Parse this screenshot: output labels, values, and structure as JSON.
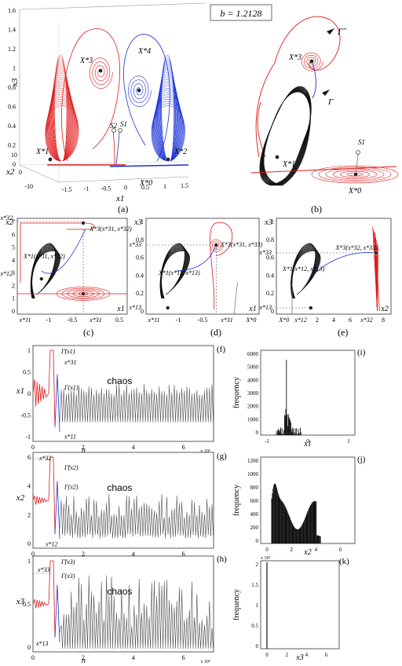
{
  "param_label": "b = 1.2128",
  "panels": {
    "a": "(a)",
    "b": "(b)",
    "c": "(c)",
    "d": "(d)",
    "e": "(e)",
    "f": "(f)",
    "g": "(g)",
    "h": "(h)",
    "i": "(i)",
    "j": "(j)",
    "k": "(k)"
  },
  "axes3d": {
    "x3": "x3",
    "x2": "x2",
    "x1": "x1",
    "z_ticks": [
      "1.6",
      "1.4",
      "1.2",
      "1",
      "0.8",
      "0.6",
      "0.4",
      "0.2",
      "0"
    ],
    "y_ticks": [
      "10",
      "0",
      "-10"
    ],
    "x_ticks": [
      "-1.5",
      "-1",
      "-0.5",
      "0",
      "0.5",
      "1",
      "1.5"
    ]
  },
  "points": {
    "X1": "X*1",
    "X2": "X*2",
    "X3": "X*3",
    "X4": "X*4",
    "X0": "X*0",
    "S1": "S1",
    "S2": "S2",
    "gamma_tilde": "Γ̃",
    "gamma": "Γ",
    "X3c": "X*3(x*31, x*32)",
    "X1c": "X*1(x*11, x*12)",
    "X3d": "X*3(x*31, x*33)",
    "X1d": "X*1(x*11, x*13)",
    "X3e": "X*3(x*32, x*33)",
    "X1e": "X*1(x*12, x*13)"
  },
  "panel_c": {
    "xlabel": "x1",
    "ylabel": "x2",
    "yticks": [
      "7",
      "6",
      "5",
      "4",
      "3",
      "2",
      "1",
      "0"
    ],
    "xticks": [
      "x*11",
      "-1",
      "-0.5",
      "x*31",
      "0.5"
    ],
    "ymarks": [
      "x*32",
      "x*12"
    ]
  },
  "panel_d": {
    "xlabel": "x1",
    "ylabel": "x3",
    "yticks": [
      "1",
      "0.8",
      "0.6",
      "0.4",
      "0.2",
      "0"
    ],
    "xticks": [
      "x*11",
      "-1",
      "-0.5",
      "x*31",
      "X*0"
    ],
    "ymarks": [
      "x*33",
      "x*13"
    ]
  },
  "panel_e": {
    "xlabel": "x2",
    "ylabel": "x3",
    "yticks": [
      "1",
      "0.8",
      "0.6",
      "0.4",
      "0.2",
      "0"
    ],
    "xticks": [
      "X*0",
      "x*12",
      "2",
      "4",
      "6",
      "x*32",
      "8"
    ],
    "ymarks": [
      "x*33",
      "x*13"
    ]
  },
  "time_f": {
    "ylabel": "x1",
    "yticks": [
      "1",
      "0.5",
      "0",
      "-0.5",
      "-1"
    ],
    "xticks": [
      "0",
      "2",
      "4",
      "6"
    ],
    "xlabel": "n",
    "exp": "x 10⁵",
    "chaos": "chaos",
    "ann": [
      "Γ̃(x1)",
      "x*31",
      "Γ(x1)",
      "x*11"
    ]
  },
  "time_g": {
    "ylabel": "x2",
    "yticks": [
      "6",
      "4",
      "2",
      "0"
    ],
    "xticks": [
      "0",
      "2",
      "4",
      "6"
    ],
    "xlabel": "n",
    "exp": "x 10⁵",
    "chaos": "chaos",
    "ann": [
      "x*32",
      "Γ̃(x2)",
      "Γ(x2)",
      "x*12"
    ]
  },
  "time_h": {
    "ylabel": "x3",
    "yticks": [
      "1",
      "0.5",
      "0"
    ],
    "xticks": [
      "0",
      "2",
      "4",
      "6"
    ],
    "xlabel": "n",
    "exp": "x 10⁵",
    "chaos": "chaos",
    "ann": [
      "x*33",
      "Γ̃(x3)",
      "Γ(x3)",
      "x*13"
    ]
  },
  "hist_i": {
    "ylabel": "frequency",
    "xlabel": "x1",
    "yticks": [
      "6000",
      "5000",
      "4000",
      "3000",
      "2000",
      "1000",
      "0"
    ],
    "xticks": [
      "-1",
      "0",
      "1"
    ]
  },
  "hist_j": {
    "ylabel": "frequency",
    "xlabel": "x2",
    "yticks": [
      "1200",
      "1000",
      "800",
      "600",
      "400",
      "200",
      "0"
    ],
    "xticks": [
      "0",
      "2",
      "4",
      "6"
    ]
  },
  "hist_k": {
    "ylabel": "frequency",
    "xlabel": "x3",
    "yticks": [
      "2",
      "1.5",
      "1",
      "0.5",
      "0"
    ],
    "xticks": [
      "0",
      "2",
      "4",
      "6"
    ],
    "exp": "x 10⁵"
  },
  "colors": {
    "red": "#e01818",
    "blue": "#1830d8",
    "black": "#111111",
    "gray": "#777777"
  }
}
